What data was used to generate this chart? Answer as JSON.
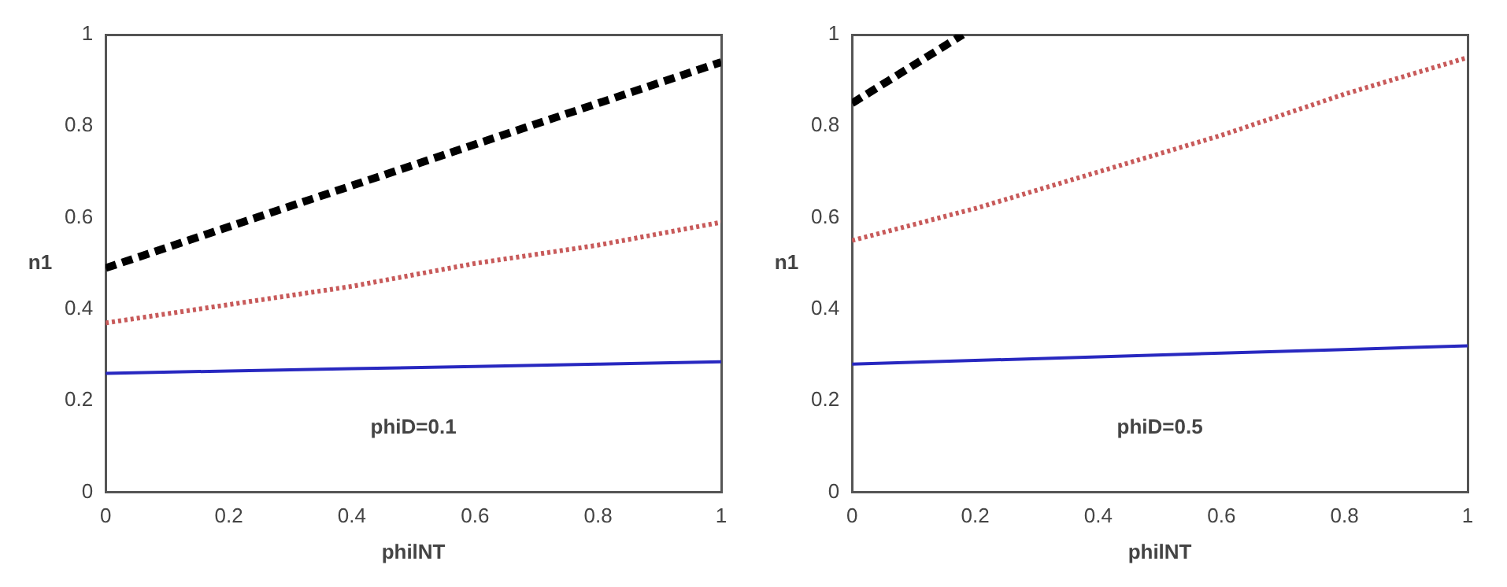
{
  "chart_data": [
    {
      "type": "line",
      "xlabel": "philNT",
      "ylabel": "n1",
      "annotations": [
        "phiD=0.1"
      ],
      "xlim": [
        0,
        1
      ],
      "ylim": [
        0,
        1
      ],
      "xticks": [
        0,
        0.2,
        0.4,
        0.6,
        0.8,
        1
      ],
      "yticks": [
        0,
        0.2,
        0.4,
        0.6,
        0.8,
        1
      ],
      "grid": false,
      "legend": false,
      "x": [
        0,
        0.2,
        0.4,
        0.6,
        0.8,
        1
      ],
      "series": [
        {
          "color": "#000000",
          "line_style": "dashed",
          "values": [
            0.49,
            0.58,
            0.67,
            0.76,
            0.85,
            0.94
          ]
        },
        {
          "color": "#c85a5a",
          "line_style": "dotted",
          "values": [
            0.37,
            0.41,
            0.45,
            0.5,
            0.54,
            0.59
          ]
        },
        {
          "color": "#2828c0",
          "line_style": "solid",
          "values": [
            0.26,
            0.265,
            0.27,
            0.275,
            0.28,
            0.285
          ]
        }
      ]
    },
    {
      "type": "line",
      "xlabel": "philNT",
      "ylabel": "n1",
      "annotations": [
        "phiD=0.5"
      ],
      "xlim": [
        0,
        1
      ],
      "ylim": [
        0,
        1
      ],
      "xticks": [
        0,
        0.2,
        0.4,
        0.6,
        0.8,
        1
      ],
      "yticks": [
        0,
        0.2,
        0.4,
        0.6,
        0.8,
        1
      ],
      "grid": false,
      "legend": false,
      "x": [
        0,
        0.2,
        0.4,
        0.6,
        0.8,
        1
      ],
      "series": [
        {
          "color": "#000000",
          "line_style": "dashed",
          "x": [
            0,
            0.18
          ],
          "values": [
            0.85,
            1.0
          ]
        },
        {
          "color": "#c85a5a",
          "line_style": "dotted",
          "values": [
            0.55,
            0.62,
            0.7,
            0.78,
            0.87,
            0.95
          ]
        },
        {
          "color": "#2828c0",
          "line_style": "solid",
          "values": [
            0.28,
            0.288,
            0.296,
            0.304,
            0.312,
            0.32
          ]
        }
      ]
    }
  ]
}
